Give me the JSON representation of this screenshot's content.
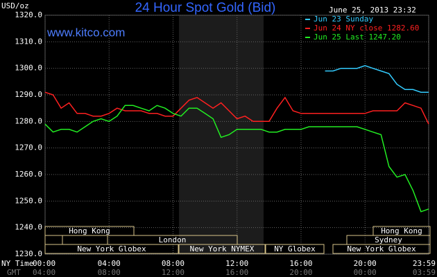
{
  "chart_data": {
    "type": "line",
    "title": "24 Hour Spot Gold (Bid)",
    "y_unit": "USD/oz",
    "timestamp": "June 25, 2013 23:32",
    "site": "www.kitco.com",
    "x_label": "NY Time",
    "x2_label": "GMT",
    "x": [
      0,
      0.5,
      1,
      1.5,
      2,
      2.5,
      3,
      3.5,
      4,
      4.5,
      5,
      5.5,
      6,
      6.5,
      7,
      7.5,
      8,
      8.5,
      9,
      9.5,
      10,
      10.5,
      11,
      11.5,
      12,
      12.5,
      13,
      13.5,
      14,
      14.5,
      15,
      15.5,
      16,
      16.5,
      17,
      17.5,
      18,
      18.5,
      19,
      19.5,
      20,
      20.5,
      21,
      21.5,
      22,
      22.5,
      23,
      23.5,
      23.98
    ],
    "xlim": [
      0,
      23.98
    ],
    "xticks": [
      {
        "value": 0,
        "label": "00:00"
      },
      {
        "value": 4,
        "label": "04:00"
      },
      {
        "value": 8,
        "label": "08:00"
      },
      {
        "value": 12,
        "label": "12:00"
      },
      {
        "value": 16,
        "label": "16:00"
      },
      {
        "value": 20,
        "label": "20:00"
      },
      {
        "value": 23.98,
        "label": "23:59"
      }
    ],
    "x2ticks": [
      "04:00",
      "08:00",
      "12:00",
      "16:00",
      "20:00",
      "00:00",
      "03:59"
    ],
    "ylim": [
      1230,
      1320
    ],
    "yticks": [
      {
        "value": 1230,
        "label": "1230.0"
      },
      {
        "value": 1240,
        "label": "1240.0"
      },
      {
        "value": 1250,
        "label": "1250.0"
      },
      {
        "value": 1260,
        "label": "1260.0"
      },
      {
        "value": 1270,
        "label": "1270.0"
      },
      {
        "value": 1280,
        "label": "1280.0"
      },
      {
        "value": 1290,
        "label": "1290.0"
      },
      {
        "value": 1300,
        "label": "1300.0"
      },
      {
        "value": 1310,
        "label": "1310.0"
      },
      {
        "value": 1320,
        "label": "1320.0"
      }
    ],
    "grid": true,
    "legend": "top-right",
    "series": [
      {
        "name": "Jun 23 Sunday",
        "color": "#33ccff",
        "values": [
          null,
          null,
          null,
          null,
          null,
          null,
          null,
          null,
          null,
          null,
          null,
          null,
          null,
          null,
          null,
          null,
          null,
          null,
          null,
          null,
          null,
          null,
          null,
          null,
          null,
          null,
          null,
          null,
          null,
          null,
          null,
          null,
          null,
          null,
          null,
          1299,
          1299,
          1300,
          1300,
          1300,
          1301,
          1300,
          1299,
          1298,
          1294,
          1292,
          1292,
          1291,
          1291
        ]
      },
      {
        "name": "Jun 24 NY close 1282.60",
        "color": "#ff2020",
        "values": [
          1291,
          1290,
          1285,
          1287,
          1283,
          1283,
          1282,
          1282,
          1283,
          1285,
          1284,
          1284,
          1284,
          1283,
          1283,
          1282,
          1282,
          1285,
          1288,
          1289,
          1287,
          1285,
          1287,
          1284,
          1281,
          1282,
          1280,
          1280,
          1280,
          1285,
          1289,
          1284,
          1283,
          1283,
          1283,
          1283,
          1283,
          1283,
          1283,
          1283,
          1283,
          1284,
          1284,
          1284,
          1284,
          1287,
          1286,
          1285,
          1279
        ]
      },
      {
        "name": "Jun 25 Last 1247.20",
        "color": "#22ee22",
        "values": [
          1279,
          1276,
          1277,
          1277,
          1276,
          1278,
          1280,
          1281,
          1280,
          1282,
          1286,
          1286,
          1285,
          1284,
          1286,
          1285,
          1283,
          1282,
          1285,
          1285,
          1283,
          1281,
          1274,
          1275,
          1277,
          1277,
          1277,
          1277,
          1276,
          1276,
          1277,
          1277,
          1277,
          1278,
          1278,
          1278,
          1278,
          1278,
          1278,
          1278,
          1277,
          1276,
          1275,
          1263,
          1259,
          1260,
          1254,
          1246,
          1247
        ]
      }
    ],
    "sessions": [
      "Hong Kong",
      "Hong Kong",
      "London",
      "Sydney",
      "New York Globex",
      "New York NYMEX",
      "NY Globex",
      "New York Globex"
    ]
  }
}
